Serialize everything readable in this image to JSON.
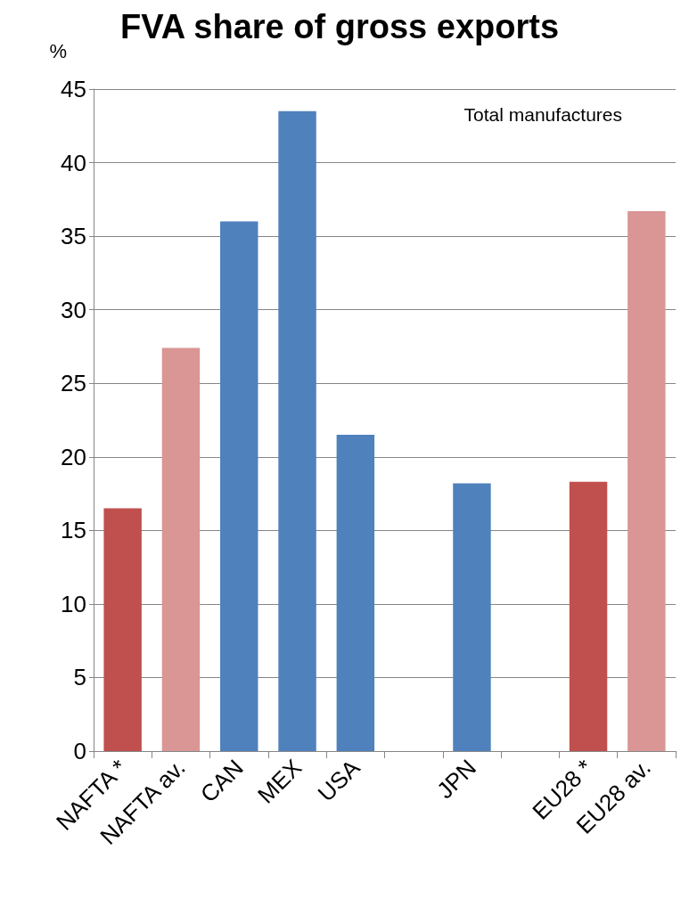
{
  "chart_data": {
    "type": "bar",
    "title": "FVA share of gross exports",
    "ylabel": "%",
    "annotations": [
      "Total manufactures"
    ],
    "categories": [
      "NAFTA *",
      "NAFTA av.",
      "CAN",
      "MEX",
      "USA",
      null,
      "JPN",
      null,
      "EU28 *",
      "EU28 av."
    ],
    "values": [
      16.5,
      27.4,
      36.0,
      43.5,
      21.5,
      null,
      18.2,
      null,
      18.3,
      36.7
    ],
    "colors": [
      "#c0504d",
      "#d99694",
      "#4f81bd",
      "#4f81bd",
      "#4f81bd",
      "#4f81bd",
      "#4f81bd",
      "#4f81bd",
      "#c0504d",
      "#d99694"
    ],
    "ylim": [
      0,
      45
    ],
    "yticks": [
      0,
      5,
      10,
      15,
      20,
      25,
      30,
      35,
      40,
      45
    ],
    "grid": "y"
  }
}
